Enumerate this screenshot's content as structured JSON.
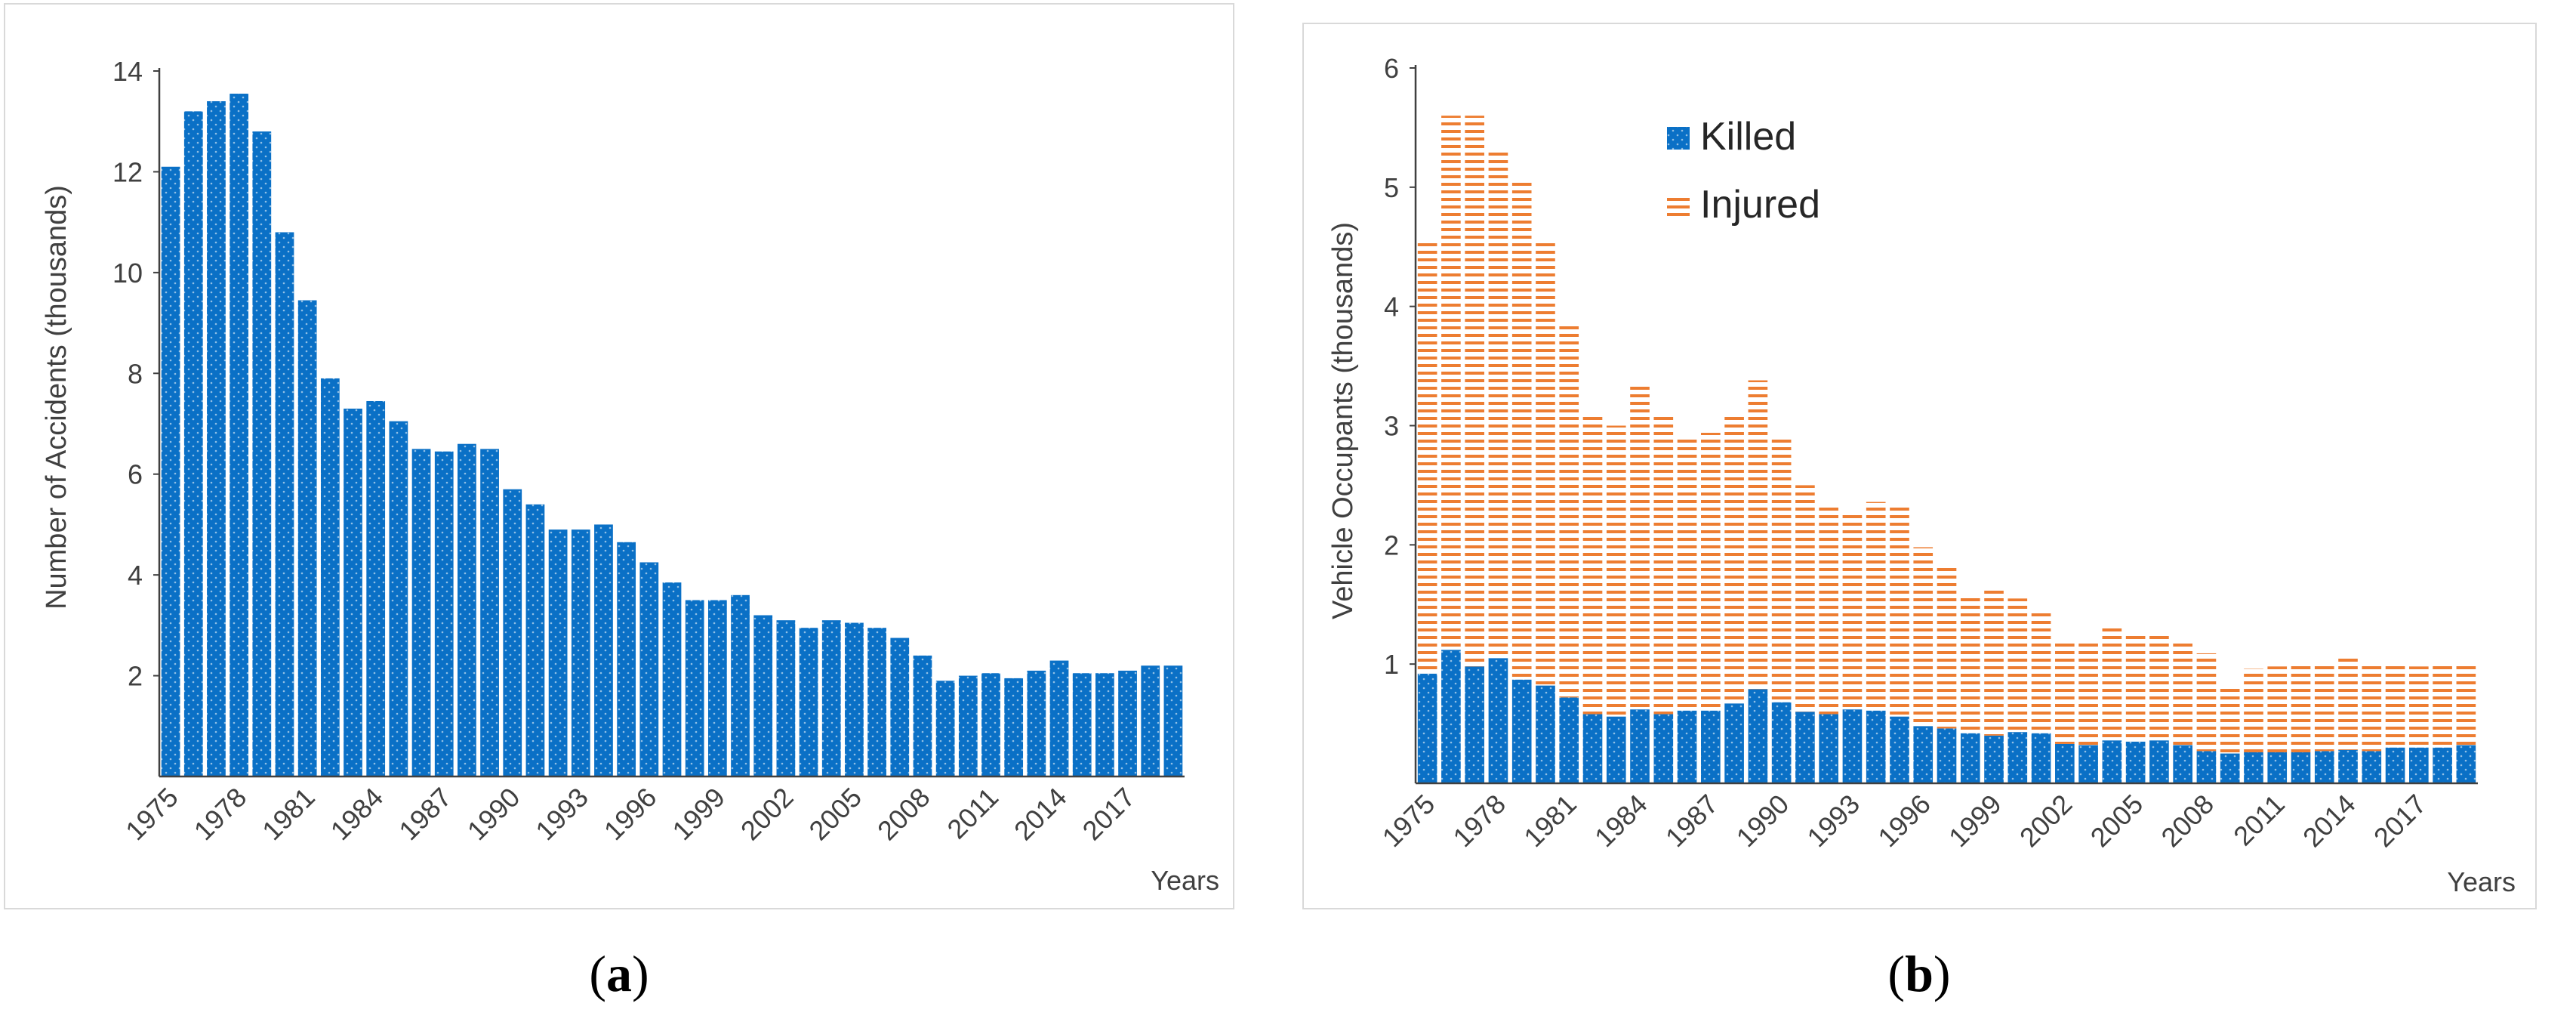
{
  "chart_data": [
    {
      "type": "bar",
      "panel": "a",
      "caption": "a",
      "ylabel": "Number of Accidents (thousands)",
      "xlabel": "Years",
      "ylim": [
        0,
        14
      ],
      "yticks": [
        2,
        4,
        6,
        8,
        10,
        12,
        14
      ],
      "xtick_labels": [
        "1975",
        "1978",
        "1981",
        "1984",
        "1987",
        "1990",
        "1993",
        "1996",
        "1999",
        "2002",
        "2005",
        "2008",
        "2011",
        "2014",
        "2017"
      ],
      "categories": [
        "1975",
        "1976",
        "1977",
        "1978",
        "1979",
        "1980",
        "1981",
        "1982",
        "1983",
        "1984",
        "1985",
        "1986",
        "1987",
        "1988",
        "1989",
        "1990",
        "1991",
        "1992",
        "1993",
        "1994",
        "1995",
        "1996",
        "1997",
        "1998",
        "1999",
        "2000",
        "2001",
        "2002",
        "2003",
        "2004",
        "2005",
        "2006",
        "2007",
        "2008",
        "2009",
        "2010",
        "2011",
        "2012",
        "2013",
        "2014",
        "2015",
        "2016",
        "2017",
        "2018",
        "2019"
      ],
      "values": [
        12.1,
        13.2,
        13.4,
        13.55,
        12.8,
        10.8,
        9.45,
        7.9,
        7.3,
        7.45,
        7.05,
        6.5,
        6.45,
        6.6,
        6.5,
        5.7,
        5.4,
        4.9,
        4.9,
        5.0,
        4.65,
        4.25,
        3.85,
        3.5,
        3.5,
        3.6,
        3.2,
        3.1,
        2.95,
        3.1,
        3.05,
        2.95,
        2.75,
        2.4,
        1.9,
        2.0,
        2.05,
        1.95,
        2.1,
        2.3,
        2.05,
        2.05,
        2.1,
        2.2,
        2.2
      ],
      "color": "#0a70c6"
    },
    {
      "type": "bar",
      "stacked": true,
      "panel": "b",
      "caption": "b",
      "ylabel": "Vehicle Occupants (thousands)",
      "xlabel": "Years",
      "ylim": [
        0,
        6
      ],
      "yticks": [
        1,
        2,
        3,
        4,
        5,
        6
      ],
      "xtick_labels": [
        "1975",
        "1978",
        "1981",
        "1984",
        "1987",
        "1990",
        "1993",
        "1996",
        "1999",
        "2002",
        "2005",
        "2008",
        "2011",
        "2014",
        "2017"
      ],
      "categories": [
        "1975",
        "1976",
        "1977",
        "1978",
        "1979",
        "1980",
        "1981",
        "1982",
        "1983",
        "1984",
        "1985",
        "1986",
        "1987",
        "1988",
        "1989",
        "1990",
        "1991",
        "1992",
        "1993",
        "1994",
        "1995",
        "1996",
        "1997",
        "1998",
        "1999",
        "2000",
        "2001",
        "2002",
        "2003",
        "2004",
        "2005",
        "2006",
        "2007",
        "2008",
        "2009",
        "2010",
        "2011",
        "2012",
        "2013",
        "2014",
        "2015",
        "2016",
        "2017",
        "2018",
        "2019"
      ],
      "series": [
        {
          "name": "Killed",
          "color": "#0a70c6",
          "values": [
            0.92,
            1.12,
            0.98,
            1.05,
            0.87,
            0.82,
            0.72,
            0.58,
            0.56,
            0.62,
            0.58,
            0.61,
            0.61,
            0.67,
            0.79,
            0.68,
            0.6,
            0.58,
            0.62,
            0.61,
            0.56,
            0.48,
            0.46,
            0.42,
            0.4,
            0.43,
            0.42,
            0.33,
            0.32,
            0.36,
            0.35,
            0.36,
            0.32,
            0.27,
            0.25,
            0.26,
            0.26,
            0.26,
            0.27,
            0.28,
            0.27,
            0.3,
            0.3,
            0.3,
            0.32
          ]
        },
        {
          "name": "Injured",
          "color": "#ed7d31",
          "values": [
            3.62,
            4.48,
            4.62,
            4.25,
            4.17,
            3.71,
            3.15,
            2.52,
            2.44,
            2.73,
            2.52,
            2.29,
            2.33,
            2.43,
            2.59,
            2.24,
            1.9,
            1.74,
            1.65,
            1.75,
            1.76,
            1.5,
            1.36,
            1.16,
            1.22,
            1.12,
            1.02,
            0.88,
            0.88,
            0.97,
            0.92,
            0.88,
            0.87,
            0.82,
            0.58,
            0.7,
            0.72,
            0.74,
            0.73,
            0.79,
            0.74,
            0.72,
            0.68,
            0.72,
            0.7
          ]
        }
      ],
      "legend": [
        "Killed",
        "Injured"
      ]
    }
  ]
}
